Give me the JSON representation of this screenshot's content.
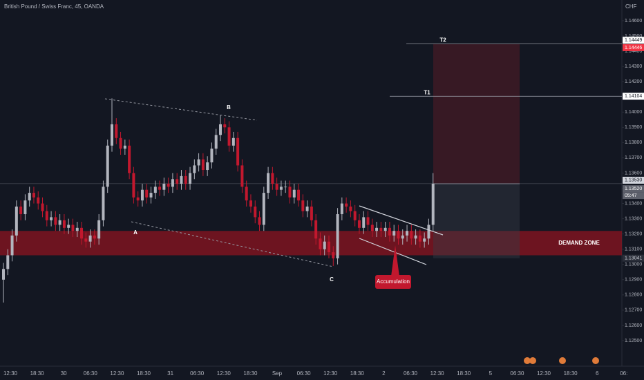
{
  "chart_data": {
    "type": "candlestick",
    "title": "British Pound / Swiss Franc, 45, OANDA",
    "currency": "CHF",
    "ylim": [
      1.12332,
      1.14736
    ],
    "yticks": [
      {
        "value": 1.125,
        "label": "1.12500"
      },
      {
        "value": 1.126,
        "label": "1.12600"
      },
      {
        "value": 1.127,
        "label": "1.12700"
      },
      {
        "value": 1.128,
        "label": "1.12800"
      },
      {
        "value": 1.129,
        "label": "1.12900"
      },
      {
        "value": 1.13,
        "label": "1.13000"
      },
      {
        "value": 1.131,
        "label": "1.13100"
      },
      {
        "value": 1.132,
        "label": "1.13200"
      },
      {
        "value": 1.133,
        "label": "1.13300"
      },
      {
        "value": 1.134,
        "label": "1.13400"
      },
      {
        "value": 1.135,
        "label": "1.13500"
      },
      {
        "value": 1.136,
        "label": "1.13600"
      },
      {
        "value": 1.137,
        "label": "1.13700"
      },
      {
        "value": 1.138,
        "label": "1.13800"
      },
      {
        "value": 1.139,
        "label": "1.13900"
      },
      {
        "value": 1.14,
        "label": "1.14000"
      },
      {
        "value": 1.141,
        "label": "1.14100"
      },
      {
        "value": 1.142,
        "label": "1.14200"
      },
      {
        "value": 1.143,
        "label": "1.14300"
      },
      {
        "value": 1.144,
        "label": "1.14400"
      },
      {
        "value": 1.145,
        "label": "1.14500"
      },
      {
        "value": 1.146,
        "label": "1.14600"
      }
    ],
    "categories": [
      "12:30",
      "18:30",
      "30",
      "06:30",
      "12:30",
      "18:30",
      "31",
      "06:30",
      "12:30",
      "18:30",
      "Sep",
      "06:30",
      "12:30",
      "18:30",
      "2",
      "06:30",
      "12:30",
      "18:30",
      "5",
      "06:30",
      "12:30",
      "18:30",
      "6",
      "06:"
    ],
    "up_color": "#b2b5be",
    "down_color": "#c2182e",
    "open": [
      1.129,
      1.1297,
      1.1306,
      1.1319,
      1.1338,
      1.1333,
      1.1342,
      1.1347,
      1.1344,
      1.134,
      1.1335,
      1.1329,
      1.1331,
      1.1326,
      1.1329,
      1.1324,
      1.1326,
      1.1322,
      1.1324,
      1.1317,
      1.1315,
      1.1319,
      1.1317,
      1.1329,
      1.1351,
      1.1378,
      1.1392,
      1.1383,
      1.1376,
      1.1378,
      1.136,
      1.1344,
      1.1342,
      1.1349,
      1.1344,
      1.1347,
      1.1351,
      1.1349,
      1.1353,
      1.1351,
      1.1356,
      1.1353,
      1.1358,
      1.1353,
      1.136,
      1.1365,
      1.1369,
      1.1362,
      1.1367,
      1.1376,
      1.1385,
      1.1392,
      1.139,
      1.1378,
      1.1383,
      1.1365,
      1.1351,
      1.1342,
      1.1338,
      1.1331,
      1.1326,
      1.1347,
      1.136,
      1.1353,
      1.1349,
      1.1351,
      1.1351,
      1.1344,
      1.1349,
      1.1342,
      1.1335,
      1.1338,
      1.1329,
      1.1317,
      1.131,
      1.1315,
      1.1308,
      1.1304,
      1.1333,
      1.134,
      1.1338,
      1.1335,
      1.1329,
      1.1324,
      1.1331,
      1.1326,
      1.1322,
      1.1324,
      1.1322,
      1.1324,
      1.1319,
      1.1322,
      1.1317,
      1.1319,
      1.1322,
      1.1317,
      1.1319,
      1.1315,
      1.1317,
      1.1326
    ],
    "high": [
      1.1301,
      1.131,
      1.1323,
      1.1342,
      1.1342,
      1.1346,
      1.1351,
      1.1351,
      1.1348,
      1.1344,
      1.1339,
      1.1335,
      1.1335,
      1.1333,
      1.1333,
      1.133,
      1.133,
      1.1328,
      1.1328,
      1.1321,
      1.1323,
      1.1323,
      1.1333,
      1.1355,
      1.1382,
      1.1409,
      1.1396,
      1.1387,
      1.1382,
      1.1382,
      1.1364,
      1.1348,
      1.1353,
      1.1353,
      1.1351,
      1.1355,
      1.1355,
      1.1357,
      1.1357,
      1.136,
      1.136,
      1.1362,
      1.1362,
      1.1364,
      1.1369,
      1.1373,
      1.1373,
      1.1371,
      1.138,
      1.1389,
      1.1398,
      1.1396,
      1.1394,
      1.1387,
      1.1387,
      1.1369,
      1.1355,
      1.1346,
      1.1342,
      1.1335,
      1.1351,
      1.1364,
      1.1364,
      1.1357,
      1.1355,
      1.1355,
      1.1355,
      1.1353,
      1.1353,
      1.1346,
      1.1342,
      1.1342,
      1.1333,
      1.1321,
      1.1319,
      1.1319,
      1.1312,
      1.1337,
      1.1344,
      1.1344,
      1.1342,
      1.1339,
      1.1333,
      1.1335,
      1.1335,
      1.133,
      1.1328,
      1.1328,
      1.1328,
      1.1328,
      1.1326,
      1.1326,
      1.1323,
      1.1326,
      1.1326,
      1.1323,
      1.1323,
      1.1321,
      1.133,
      1.136
    ],
    "low": [
      1.1275,
      1.1293,
      1.1302,
      1.1315,
      1.1329,
      1.1329,
      1.1338,
      1.134,
      1.1336,
      1.1331,
      1.1325,
      1.1325,
      1.1322,
      1.1322,
      1.132,
      1.132,
      1.1318,
      1.1318,
      1.1313,
      1.1311,
      1.1311,
      1.1313,
      1.1313,
      1.1325,
      1.1347,
      1.1374,
      1.1379,
      1.1372,
      1.1372,
      1.1356,
      1.134,
      1.1338,
      1.1338,
      1.134,
      1.134,
      1.1343,
      1.1345,
      1.1345,
      1.1347,
      1.1347,
      1.1349,
      1.1349,
      1.1349,
      1.1349,
      1.1356,
      1.1361,
      1.1358,
      1.1358,
      1.1363,
      1.1372,
      1.1381,
      1.1386,
      1.1374,
      1.1374,
      1.1361,
      1.1347,
      1.1338,
      1.1334,
      1.1327,
      1.1322,
      1.1322,
      1.1343,
      1.1349,
      1.1345,
      1.1345,
      1.1347,
      1.134,
      1.134,
      1.1338,
      1.1331,
      1.1331,
      1.1325,
      1.1313,
      1.1306,
      1.1306,
      1.1304,
      1.1299,
      1.13,
      1.1329,
      1.1334,
      1.1331,
      1.1325,
      1.132,
      1.132,
      1.1322,
      1.1318,
      1.1318,
      1.1318,
      1.1318,
      1.1315,
      1.1315,
      1.1313,
      1.1313,
      1.1315,
      1.1313,
      1.1313,
      1.1311,
      1.1311,
      1.1313,
      1.1322
    ],
    "close": [
      1.1297,
      1.1306,
      1.1319,
      1.1338,
      1.1333,
      1.1342,
      1.1347,
      1.1344,
      1.134,
      1.1335,
      1.1329,
      1.1331,
      1.1326,
      1.1329,
      1.1324,
      1.1326,
      1.1322,
      1.1324,
      1.1317,
      1.1315,
      1.1319,
      1.1317,
      1.1329,
      1.1351,
      1.1378,
      1.1392,
      1.1383,
      1.1376,
      1.1378,
      1.136,
      1.1344,
      1.1342,
      1.1349,
      1.1344,
      1.1347,
      1.1351,
      1.1349,
      1.1353,
      1.1351,
      1.1356,
      1.1353,
      1.1358,
      1.1353,
      1.136,
      1.1365,
      1.1369,
      1.1362,
      1.1367,
      1.1376,
      1.1385,
      1.1392,
      1.139,
      1.1378,
      1.1383,
      1.1365,
      1.1351,
      1.1342,
      1.1338,
      1.1331,
      1.1326,
      1.1347,
      1.136,
      1.1353,
      1.1349,
      1.1351,
      1.1351,
      1.1344,
      1.1349,
      1.1342,
      1.1335,
      1.1338,
      1.1329,
      1.1317,
      1.131,
      1.1315,
      1.1308,
      1.1304,
      1.1333,
      1.134,
      1.1338,
      1.1335,
      1.1329,
      1.1324,
      1.1331,
      1.1326,
      1.1322,
      1.1324,
      1.1322,
      1.1324,
      1.1319,
      1.1322,
      1.1317,
      1.1319,
      1.1322,
      1.1317,
      1.1319,
      1.1315,
      1.1317,
      1.1326,
      1.1353
    ],
    "axis_tags": [
      {
        "value": 1.14449,
        "bg": "#ffffff",
        "fg": "#131722"
      },
      {
        "value": 1.14446,
        "bg": "#f23645",
        "fg": "#ffffff"
      },
      {
        "value": 1.14104,
        "bg": "#ffffff",
        "fg": "#131722"
      },
      {
        "value": 1.1353,
        "label": "1.13530",
        "bg": "#d1d4dc",
        "fg": "#131722"
      },
      {
        "value": 1.1352,
        "label": "1.13520",
        "bg": "#5d606b",
        "fg": "#ffffff"
      },
      {
        "value": 1.13041,
        "bg": "#2a2e39",
        "fg": "#d1d4dc"
      }
    ],
    "countdown": "05:47",
    "target_names": [
      "T1",
      "T2"
    ],
    "demand_zone": {
      "label": "DEMAND ZONE",
      "top": 1.1322,
      "bottom": 1.1306,
      "color": "#8c1420"
    },
    "annotations": [
      "A",
      "B",
      "C"
    ],
    "callout": "Accumulation"
  }
}
